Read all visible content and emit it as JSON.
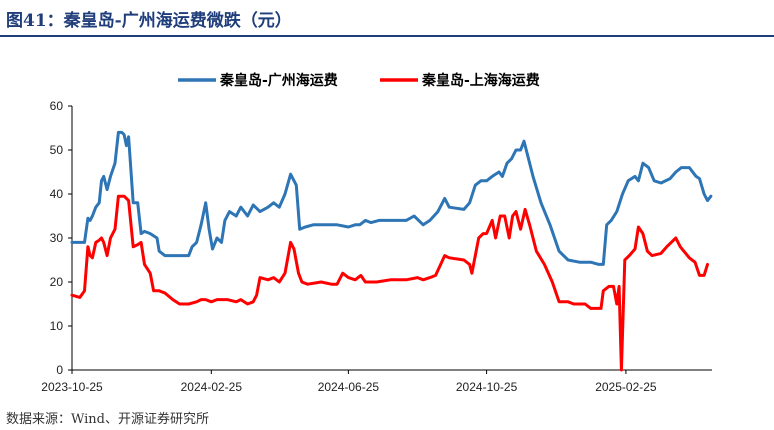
{
  "figure": {
    "title": "图41：秦皇岛-广州海运费微跌（元）",
    "source": "数据来源：Wind、开源证券研究所"
  },
  "colors": {
    "title": "#1f3d7a",
    "series1": "#2e75b6",
    "series2": "#ff0000",
    "axis": "#000000"
  },
  "chart_data": {
    "type": "line",
    "legend_position": "top-center",
    "grid": false,
    "ylim": [
      0,
      60
    ],
    "yticks": [
      "0",
      "10",
      "20",
      "30",
      "40",
      "50",
      "60"
    ],
    "xlabels": [
      "2023-10-25",
      "2024-02-25",
      "2024-06-25",
      "2024-10-25",
      "2025-02-25"
    ],
    "series": [
      {
        "name": "秦皇岛-广州海运费",
        "color": "#2e75b6",
        "points": [
          [
            "2023-10-25",
            29
          ],
          [
            "2023-11-01",
            29
          ],
          [
            "2023-11-05",
            29
          ],
          [
            "2023-11-08",
            34.5
          ],
          [
            "2023-11-10",
            34
          ],
          [
            "2023-11-12",
            35
          ],
          [
            "2023-11-15",
            37
          ],
          [
            "2023-11-18",
            38
          ],
          [
            "2023-11-20",
            43
          ],
          [
            "2023-11-22",
            44
          ],
          [
            "2023-11-25",
            41
          ],
          [
            "2023-11-28",
            44
          ],
          [
            "2023-12-02",
            47
          ],
          [
            "2023-12-05",
            54
          ],
          [
            "2023-12-08",
            54
          ],
          [
            "2023-12-10",
            53.5
          ],
          [
            "2023-12-12",
            51
          ],
          [
            "2023-12-14",
            53
          ],
          [
            "2023-12-18",
            38
          ],
          [
            "2023-12-22",
            38
          ],
          [
            "2023-12-25",
            31
          ],
          [
            "2023-12-28",
            31.5
          ],
          [
            "2024-01-02",
            31
          ],
          [
            "2024-01-08",
            30
          ],
          [
            "2024-01-10",
            27
          ],
          [
            "2024-01-15",
            26
          ],
          [
            "2024-01-25",
            26
          ],
          [
            "2024-02-05",
            26
          ],
          [
            "2024-02-08",
            28
          ],
          [
            "2024-02-12",
            29
          ],
          [
            "2024-02-16",
            33
          ],
          [
            "2024-02-20",
            38
          ],
          [
            "2024-02-23",
            32
          ],
          [
            "2024-02-26",
            27.5
          ],
          [
            "2024-03-01",
            30
          ],
          [
            "2024-03-05",
            29
          ],
          [
            "2024-03-08",
            34
          ],
          [
            "2024-03-12",
            36
          ],
          [
            "2024-03-18",
            35
          ],
          [
            "2024-03-22",
            37
          ],
          [
            "2024-03-28",
            35
          ],
          [
            "2024-04-02",
            37.5
          ],
          [
            "2024-04-08",
            36
          ],
          [
            "2024-04-15",
            37
          ],
          [
            "2024-04-20",
            38
          ],
          [
            "2024-04-25",
            37
          ],
          [
            "2024-04-30",
            40
          ],
          [
            "2024-05-05",
            44.5
          ],
          [
            "2024-05-10",
            42
          ],
          [
            "2024-05-13",
            32
          ],
          [
            "2024-05-18",
            32.5
          ],
          [
            "2024-05-25",
            33
          ],
          [
            "2024-06-05",
            33
          ],
          [
            "2024-06-15",
            33
          ],
          [
            "2024-06-25",
            32.5
          ],
          [
            "2024-07-01",
            33
          ],
          [
            "2024-07-05",
            33
          ],
          [
            "2024-07-10",
            34
          ],
          [
            "2024-07-15",
            33.5
          ],
          [
            "2024-07-22",
            34
          ],
          [
            "2024-08-05",
            34
          ],
          [
            "2024-08-15",
            34
          ],
          [
            "2024-08-22",
            35
          ],
          [
            "2024-08-30",
            33
          ],
          [
            "2024-09-05",
            34
          ],
          [
            "2024-09-12",
            36
          ],
          [
            "2024-09-18",
            39
          ],
          [
            "2024-09-22",
            37
          ],
          [
            "2024-10-05",
            36.5
          ],
          [
            "2024-10-10",
            38
          ],
          [
            "2024-10-15",
            42
          ],
          [
            "2024-10-20",
            43
          ],
          [
            "2024-10-25",
            43
          ],
          [
            "2024-10-30",
            44
          ],
          [
            "2024-11-05",
            45
          ],
          [
            "2024-11-08",
            44
          ],
          [
            "2024-11-12",
            47
          ],
          [
            "2024-11-16",
            48
          ],
          [
            "2024-11-20",
            50
          ],
          [
            "2024-11-24",
            50
          ],
          [
            "2024-11-27",
            52
          ],
          [
            "2024-12-01",
            48
          ],
          [
            "2024-12-05",
            44
          ],
          [
            "2024-12-12",
            38
          ],
          [
            "2024-12-20",
            33
          ],
          [
            "2024-12-28",
            27
          ],
          [
            "2025-01-05",
            25
          ],
          [
            "2025-01-15",
            24.5
          ],
          [
            "2025-01-25",
            24.5
          ],
          [
            "2025-02-01",
            24
          ],
          [
            "2025-02-05",
            24
          ],
          [
            "2025-02-08",
            33
          ],
          [
            "2025-02-12",
            34
          ],
          [
            "2025-02-17",
            36
          ],
          [
            "2025-02-22",
            40
          ],
          [
            "2025-02-27",
            43
          ],
          [
            "2025-03-05",
            44
          ],
          [
            "2025-03-08",
            43
          ],
          [
            "2025-03-12",
            47
          ],
          [
            "2025-03-17",
            46
          ],
          [
            "2025-03-22",
            43
          ],
          [
            "2025-03-28",
            42.5
          ],
          [
            "2025-04-05",
            43.5
          ],
          [
            "2025-04-10",
            45
          ],
          [
            "2025-04-15",
            46
          ],
          [
            "2025-04-22",
            46
          ],
          [
            "2025-04-28",
            44
          ],
          [
            "2025-05-01",
            43.5
          ],
          [
            "2025-05-05",
            40
          ],
          [
            "2025-05-08",
            38.5
          ],
          [
            "2025-05-11",
            39.5
          ]
        ]
      },
      {
        "name": "秦皇岛-上海海运费",
        "color": "#ff0000",
        "points": [
          [
            "2023-10-25",
            17
          ],
          [
            "2023-11-01",
            16.5
          ],
          [
            "2023-11-05",
            18
          ],
          [
            "2023-11-08",
            28
          ],
          [
            "2023-11-10",
            26
          ],
          [
            "2023-11-12",
            25.5
          ],
          [
            "2023-11-15",
            29
          ],
          [
            "2023-11-18",
            29.5
          ],
          [
            "2023-11-20",
            30
          ],
          [
            "2023-11-22",
            29
          ],
          [
            "2023-11-25",
            26
          ],
          [
            "2023-11-28",
            30
          ],
          [
            "2023-12-02",
            32
          ],
          [
            "2023-12-05",
            39.5
          ],
          [
            "2023-12-10",
            39.5
          ],
          [
            "2023-12-14",
            38.5
          ],
          [
            "2023-12-18",
            28
          ],
          [
            "2023-12-22",
            28.5
          ],
          [
            "2023-12-25",
            29
          ],
          [
            "2023-12-28",
            24
          ],
          [
            "2024-01-02",
            22
          ],
          [
            "2024-01-05",
            18
          ],
          [
            "2024-01-10",
            18
          ],
          [
            "2024-01-15",
            17.5
          ],
          [
            "2024-01-22",
            16
          ],
          [
            "2024-01-28",
            15
          ],
          [
            "2024-02-05",
            15
          ],
          [
            "2024-02-12",
            15.5
          ],
          [
            "2024-02-16",
            16
          ],
          [
            "2024-02-20",
            16
          ],
          [
            "2024-02-25",
            15.5
          ],
          [
            "2024-03-01",
            16
          ],
          [
            "2024-03-10",
            16
          ],
          [
            "2024-03-18",
            15.5
          ],
          [
            "2024-03-22",
            16
          ],
          [
            "2024-03-28",
            15
          ],
          [
            "2024-04-02",
            15.5
          ],
          [
            "2024-04-05",
            17
          ],
          [
            "2024-04-08",
            21
          ],
          [
            "2024-04-15",
            20.5
          ],
          [
            "2024-04-20",
            21
          ],
          [
            "2024-04-25",
            20
          ],
          [
            "2024-04-30",
            22
          ],
          [
            "2024-05-05",
            29
          ],
          [
            "2024-05-08",
            27.5
          ],
          [
            "2024-05-12",
            22
          ],
          [
            "2024-05-15",
            20
          ],
          [
            "2024-05-20",
            19.5
          ],
          [
            "2024-06-01",
            20
          ],
          [
            "2024-06-10",
            19.5
          ],
          [
            "2024-06-15",
            19.5
          ],
          [
            "2024-06-20",
            22
          ],
          [
            "2024-06-25",
            21
          ],
          [
            "2024-07-01",
            20.5
          ],
          [
            "2024-07-06",
            21.5
          ],
          [
            "2024-07-10",
            20
          ],
          [
            "2024-07-20",
            20
          ],
          [
            "2024-08-01",
            20.5
          ],
          [
            "2024-08-15",
            20.5
          ],
          [
            "2024-08-25",
            21
          ],
          [
            "2024-08-30",
            20.5
          ],
          [
            "2024-09-05",
            21
          ],
          [
            "2024-09-10",
            21.5
          ],
          [
            "2024-09-18",
            26
          ],
          [
            "2024-09-22",
            25.5
          ],
          [
            "2024-10-05",
            25
          ],
          [
            "2024-10-10",
            24
          ],
          [
            "2024-10-12",
            22
          ],
          [
            "2024-10-18",
            30
          ],
          [
            "2024-10-22",
            31
          ],
          [
            "2024-10-25",
            31
          ],
          [
            "2024-10-30",
            34
          ],
          [
            "2024-11-02",
            30
          ],
          [
            "2024-11-06",
            35
          ],
          [
            "2024-11-10",
            35
          ],
          [
            "2024-11-14",
            30
          ],
          [
            "2024-11-17",
            35
          ],
          [
            "2024-11-20",
            36
          ],
          [
            "2024-11-24",
            32
          ],
          [
            "2024-11-28",
            36.5
          ],
          [
            "2024-12-02",
            33
          ],
          [
            "2024-12-08",
            27
          ],
          [
            "2024-12-15",
            24
          ],
          [
            "2024-12-22",
            20
          ],
          [
            "2024-12-28",
            15.5
          ],
          [
            "2025-01-05",
            15.5
          ],
          [
            "2025-01-10",
            15
          ],
          [
            "2025-01-20",
            15
          ],
          [
            "2025-01-25",
            14
          ],
          [
            "2025-02-03",
            14
          ],
          [
            "2025-02-05",
            18
          ],
          [
            "2025-02-10",
            19
          ],
          [
            "2025-02-14",
            19
          ],
          [
            "2025-02-17",
            15
          ],
          [
            "2025-02-19",
            19
          ],
          [
            "2025-02-21",
            0
          ],
          [
            "2025-02-24",
            25
          ],
          [
            "2025-02-28",
            26
          ],
          [
            "2025-03-05",
            27.5
          ],
          [
            "2025-03-08",
            32.5
          ],
          [
            "2025-03-12",
            31
          ],
          [
            "2025-03-16",
            27
          ],
          [
            "2025-03-20",
            26
          ],
          [
            "2025-03-28",
            26.5
          ],
          [
            "2025-04-02",
            28
          ],
          [
            "2025-04-06",
            29
          ],
          [
            "2025-04-10",
            30
          ],
          [
            "2025-04-14",
            28
          ],
          [
            "2025-04-22",
            25.5
          ],
          [
            "2025-04-27",
            24.5
          ],
          [
            "2025-05-01",
            21.5
          ],
          [
            "2025-05-05",
            21.5
          ],
          [
            "2025-05-08",
            24
          ]
        ]
      }
    ]
  }
}
